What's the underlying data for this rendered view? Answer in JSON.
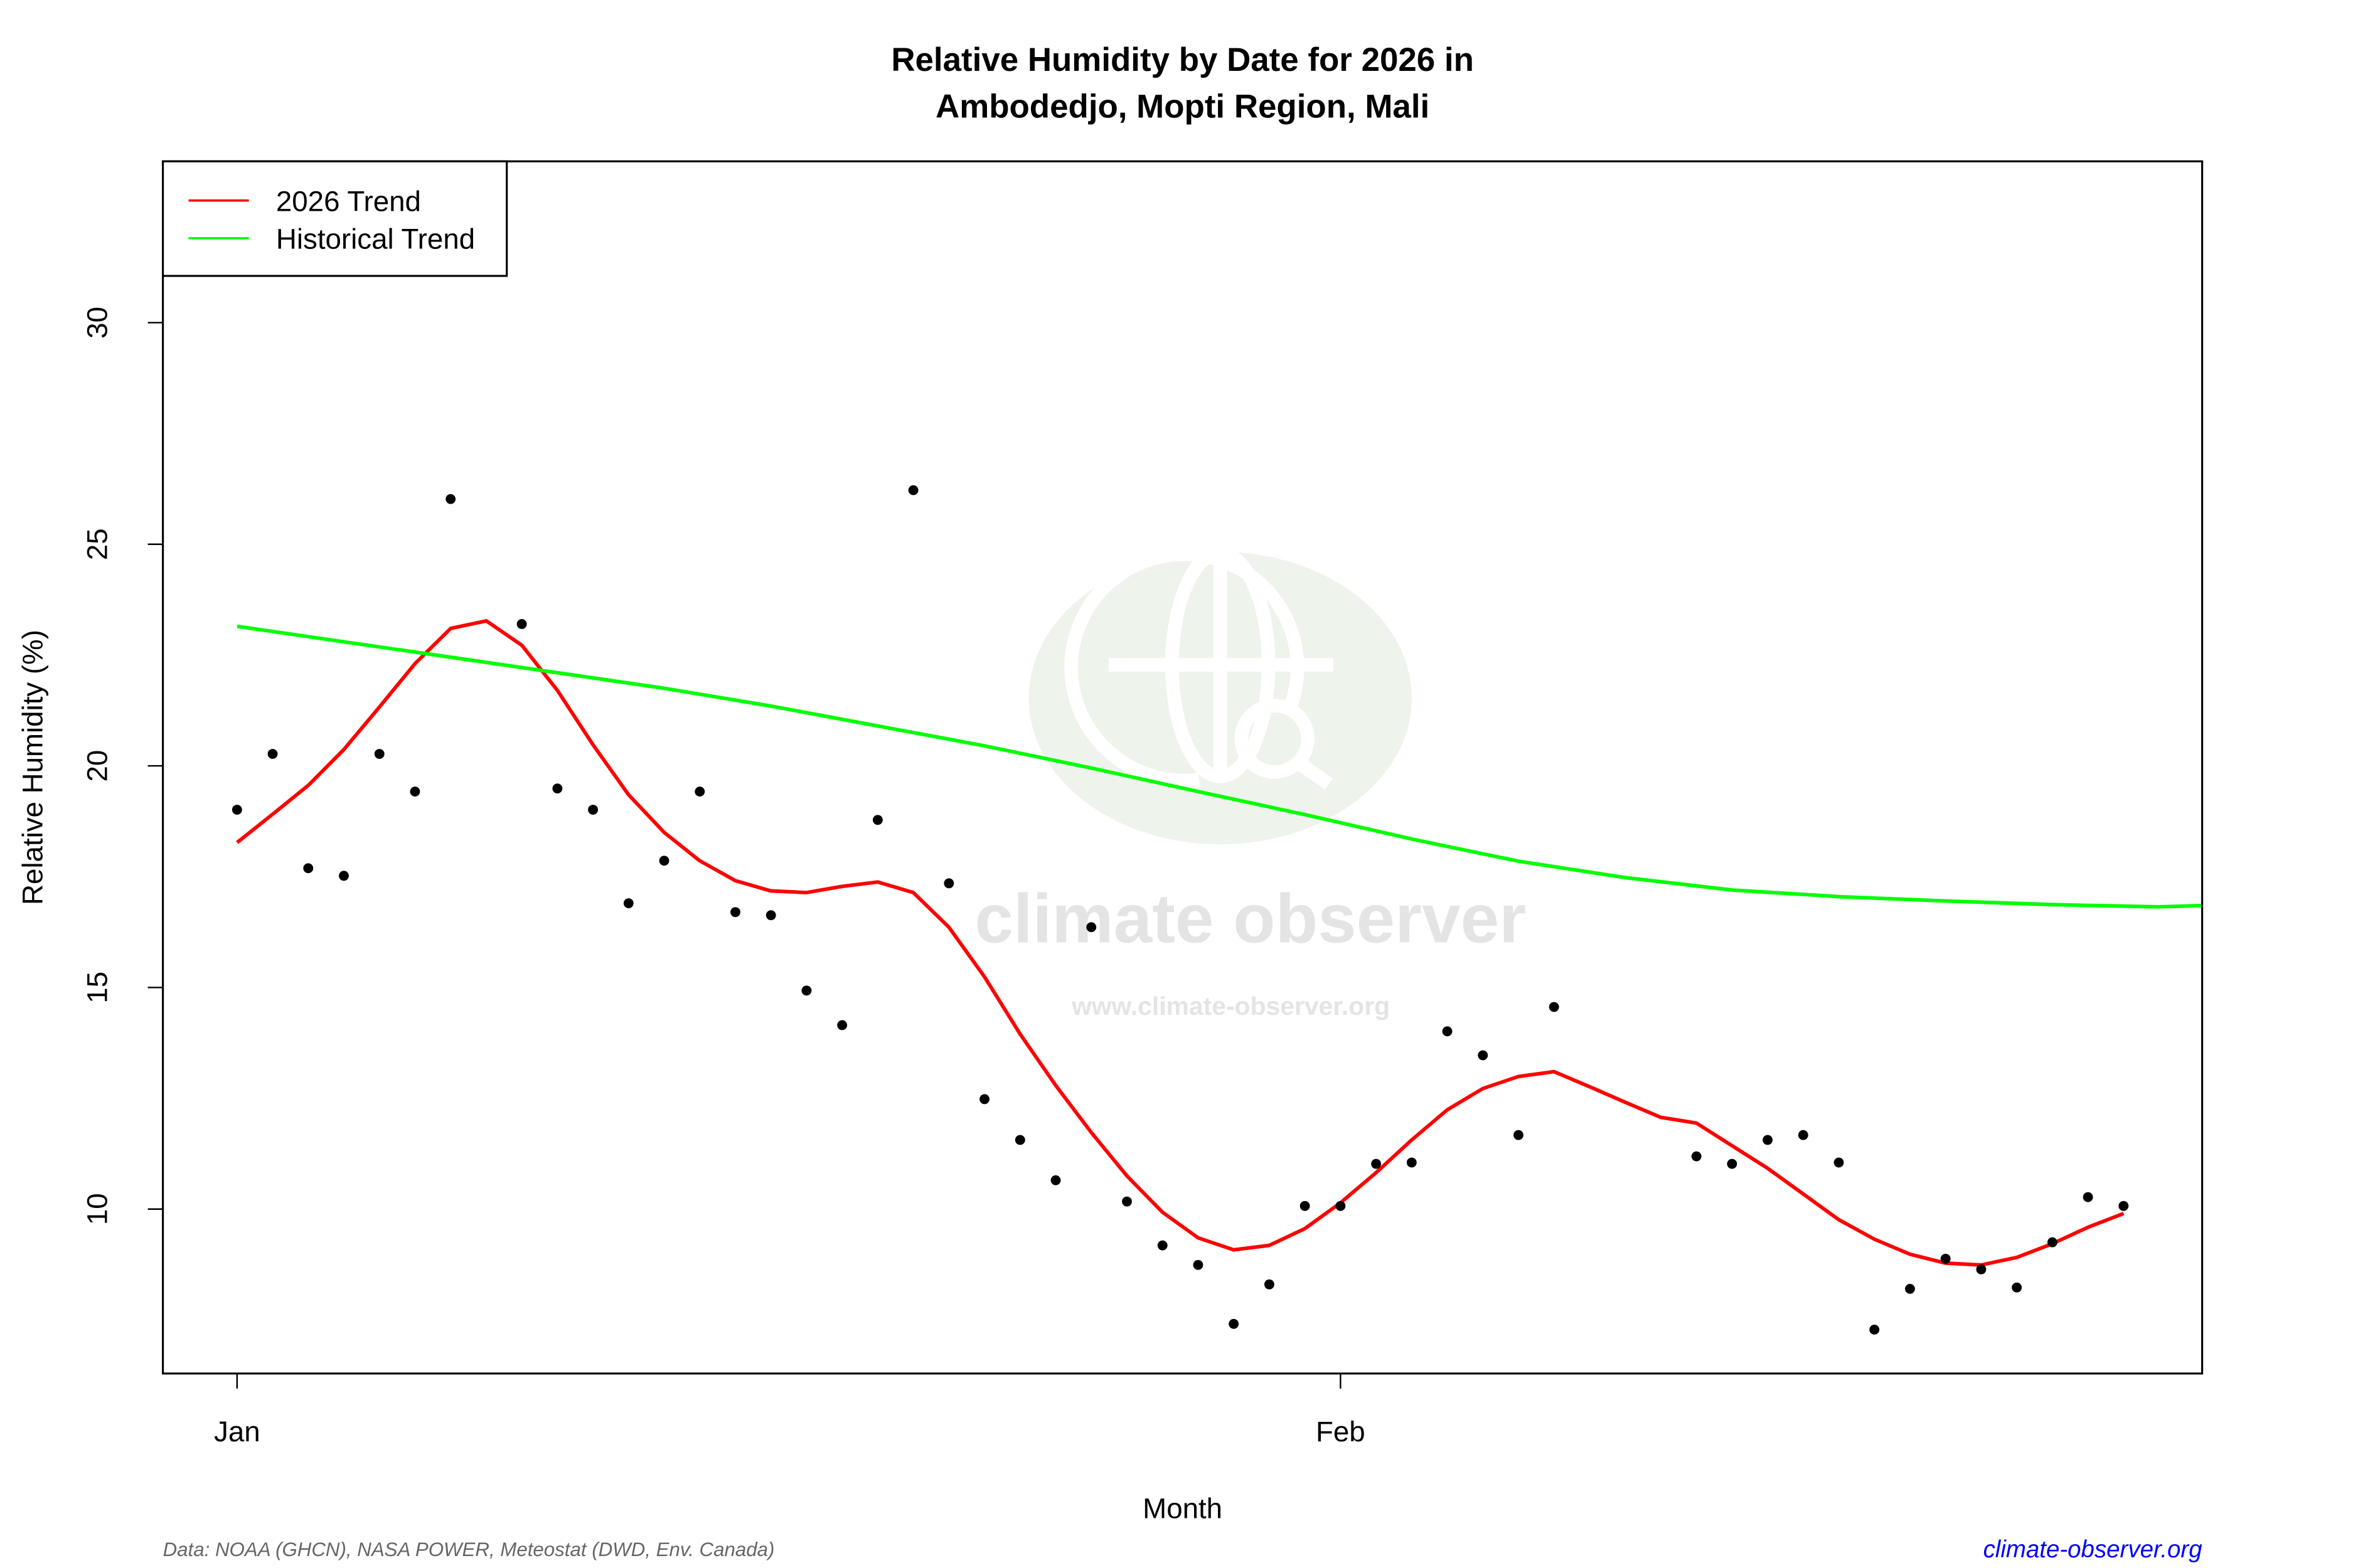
{
  "chart_data": {
    "type": "line",
    "title": "Relative Humidity by Date for 2026 in",
    "subtitle": "Ambodedjo, Mopti Region, Mali",
    "xlabel": "Month",
    "ylabel": "Relative Humidity (%)",
    "xlim": [
      "2025-12-29T22:00",
      "2026-02-25T05:00"
    ],
    "ylim": [
      6.29,
      33.64
    ],
    "x_ticks": [
      {
        "date": "2026-01-01",
        "label": "Jan"
      },
      {
        "date": "2026-02-01",
        "label": "Feb"
      }
    ],
    "y_ticks": [
      10,
      15,
      20,
      25,
      30
    ],
    "grid": false,
    "legend_position": "top-left",
    "legend": [
      {
        "label": "2026 Trend",
        "color": "#ff0000"
      },
      {
        "label": "Historical Trend",
        "color": "#00ff00"
      }
    ],
    "observations": {
      "color": "#000000",
      "points": [
        [
          "2026-01-01",
          19.01
        ],
        [
          "2026-01-02",
          20.27
        ],
        [
          "2026-01-03",
          17.69
        ],
        [
          "2026-01-04",
          17.52
        ],
        [
          "2026-01-05",
          20.27
        ],
        [
          "2026-01-06",
          19.42
        ],
        [
          "2026-01-07",
          26.02
        ],
        [
          "2026-01-09",
          23.2
        ],
        [
          "2026-01-10",
          19.49
        ],
        [
          "2026-01-11",
          19.01
        ],
        [
          "2026-01-12",
          16.9
        ],
        [
          "2026-01-13",
          17.86
        ],
        [
          "2026-01-14",
          19.42
        ],
        [
          "2026-01-15",
          16.7
        ],
        [
          "2026-01-16",
          16.63
        ],
        [
          "2026-01-17",
          14.93
        ],
        [
          "2026-01-18",
          14.15
        ],
        [
          "2026-01-19",
          18.78
        ],
        [
          "2026-01-20",
          26.22
        ],
        [
          "2026-01-21",
          17.35
        ],
        [
          "2026-01-22",
          12.48
        ],
        [
          "2026-01-23",
          11.56
        ],
        [
          "2026-01-24",
          10.65
        ],
        [
          "2026-01-25",
          16.36
        ],
        [
          "2026-01-26",
          10.17
        ],
        [
          "2026-01-27",
          9.18
        ],
        [
          "2026-01-28",
          8.74
        ],
        [
          "2026-01-29",
          7.41
        ],
        [
          "2026-01-30",
          8.3
        ],
        [
          "2026-01-31",
          10.07
        ],
        [
          "2026-02-01",
          10.07
        ],
        [
          "2026-02-02",
          11.02
        ],
        [
          "2026-02-03",
          11.05
        ],
        [
          "2026-02-04",
          14.01
        ],
        [
          "2026-02-05",
          13.47
        ],
        [
          "2026-02-06",
          11.67
        ],
        [
          "2026-02-07",
          14.56
        ],
        [
          "2026-02-11",
          11.19
        ],
        [
          "2026-02-12",
          11.02
        ],
        [
          "2026-02-13",
          11.56
        ],
        [
          "2026-02-14",
          11.67
        ],
        [
          "2026-02-15",
          11.05
        ],
        [
          "2026-02-16",
          7.28
        ],
        [
          "2026-02-17",
          8.2
        ],
        [
          "2026-02-18",
          8.88
        ],
        [
          "2026-02-19",
          8.64
        ],
        [
          "2026-02-20",
          8.23
        ],
        [
          "2026-02-21",
          9.25
        ],
        [
          "2026-02-22",
          10.27
        ],
        [
          "2026-02-23",
          10.07
        ]
      ]
    },
    "series": [
      {
        "name": "2026 Trend",
        "color": "#ff0000",
        "points": [
          [
            "2026-01-01",
            18.27
          ],
          [
            "2026-01-02",
            18.91
          ],
          [
            "2026-01-03",
            19.56
          ],
          [
            "2026-01-04",
            20.37
          ],
          [
            "2026-01-05",
            21.33
          ],
          [
            "2026-01-06",
            22.31
          ],
          [
            "2026-01-07",
            23.1
          ],
          [
            "2026-01-08",
            23.27
          ],
          [
            "2026-01-09",
            22.72
          ],
          [
            "2026-01-10",
            21.7
          ],
          [
            "2026-01-11",
            20.48
          ],
          [
            "2026-01-12",
            19.35
          ],
          [
            "2026-01-13",
            18.5
          ],
          [
            "2026-01-14",
            17.86
          ],
          [
            "2026-01-15",
            17.41
          ],
          [
            "2026-01-16",
            17.18
          ],
          [
            "2026-01-17",
            17.14
          ],
          [
            "2026-01-18",
            17.28
          ],
          [
            "2026-01-19",
            17.38
          ],
          [
            "2026-01-20",
            17.14
          ],
          [
            "2026-01-21",
            16.36
          ],
          [
            "2026-01-22",
            15.24
          ],
          [
            "2026-01-23",
            13.95
          ],
          [
            "2026-01-24",
            12.79
          ],
          [
            "2026-01-25",
            11.73
          ],
          [
            "2026-01-26",
            10.75
          ],
          [
            "2026-01-27",
            9.93
          ],
          [
            "2026-01-28",
            9.35
          ],
          [
            "2026-01-29",
            9.08
          ],
          [
            "2026-01-30",
            9.18
          ],
          [
            "2026-01-31",
            9.56
          ],
          [
            "2026-02-01",
            10.14
          ],
          [
            "2026-02-02",
            10.82
          ],
          [
            "2026-02-03",
            11.56
          ],
          [
            "2026-02-04",
            12.24
          ],
          [
            "2026-02-05",
            12.72
          ],
          [
            "2026-02-06",
            12.99
          ],
          [
            "2026-02-07",
            13.1
          ],
          [
            "2026-02-08",
            12.76
          ],
          [
            "2026-02-09",
            12.41
          ],
          [
            "2026-02-10",
            12.07
          ],
          [
            "2026-02-11",
            11.94
          ],
          [
            "2026-02-12",
            11.43
          ],
          [
            "2026-02-13",
            10.92
          ],
          [
            "2026-02-14",
            10.34
          ],
          [
            "2026-02-15",
            9.76
          ],
          [
            "2026-02-16",
            9.32
          ],
          [
            "2026-02-17",
            8.98
          ],
          [
            "2026-02-18",
            8.78
          ],
          [
            "2026-02-19",
            8.74
          ],
          [
            "2026-02-20",
            8.91
          ],
          [
            "2026-02-21",
            9.22
          ],
          [
            "2026-02-22",
            9.59
          ],
          [
            "2026-02-23",
            9.9
          ]
        ]
      },
      {
        "name": "Historical Trend",
        "color": "#00ff00",
        "points": [
          [
            "2026-01-01",
            23.15
          ],
          [
            "2026-01-04",
            22.8
          ],
          [
            "2026-01-07",
            22.45
          ],
          [
            "2026-01-10",
            22.1
          ],
          [
            "2026-01-13",
            21.75
          ],
          [
            "2026-01-16",
            21.35
          ],
          [
            "2026-01-19",
            20.9
          ],
          [
            "2026-01-22",
            20.45
          ],
          [
            "2026-01-25",
            19.95
          ],
          [
            "2026-01-28",
            19.42
          ],
          [
            "2026-01-31",
            18.9
          ],
          [
            "2026-02-03",
            18.35
          ],
          [
            "2026-02-06",
            17.85
          ],
          [
            "2026-02-09",
            17.48
          ],
          [
            "2026-02-12",
            17.2
          ],
          [
            "2026-02-15",
            17.05
          ],
          [
            "2026-02-18",
            16.95
          ],
          [
            "2026-02-21",
            16.87
          ],
          [
            "2026-02-24",
            16.82
          ],
          [
            "2026-02-25T05:00",
            16.85
          ]
        ]
      }
    ],
    "source_note": "Data: NOAA (GHCN), NASA POWER, Meteostat (DWD, Env. Canada)",
    "site_link": "climate-observer.org",
    "site_link_color": "#0000ff",
    "watermark": {
      "name": "climate observer",
      "url": "www.climate-observer.org",
      "icon": "globe-search-icon"
    }
  }
}
